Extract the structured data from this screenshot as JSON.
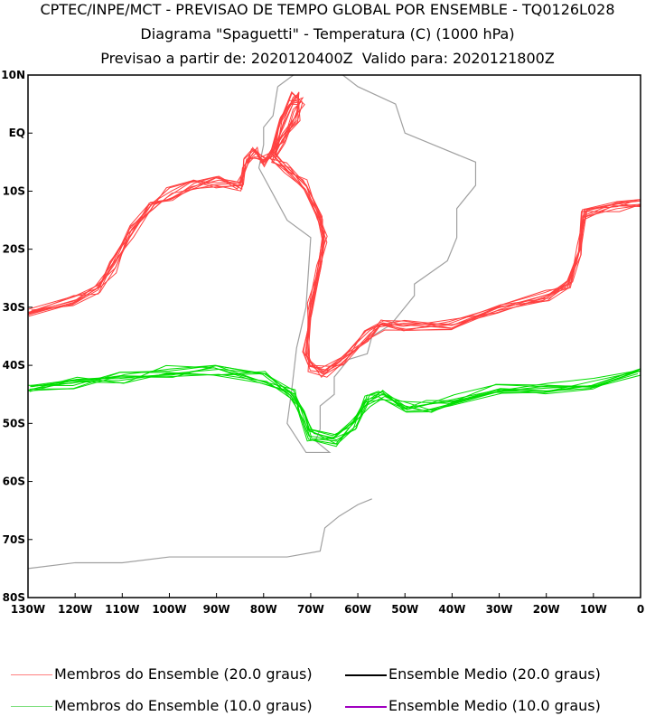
{
  "header": {
    "title": "CPTEC/INPE/MCT - PREVISAO DE TEMPO GLOBAL POR ENSEMBLE - TQ0126L028",
    "subtitle": "Diagrama \"Spaguetti\" - Temperatura (C) (1000 hPa)",
    "dates": "Previsao a partir de: 2020120400Z  Valido para: 2020121800Z"
  },
  "legend": [
    {
      "label": "Membros do Ensemble (20.0 graus)",
      "color": "#ff8080"
    },
    {
      "label": "Ensemble Medio (20.0 graus)",
      "color": "#000000"
    },
    {
      "label": "Membros do Ensemble (10.0 graus)",
      "color": "#80e080"
    },
    {
      "label": "Ensemble Medio (10.0 graus)",
      "color": "#a000c0"
    }
  ],
  "chart_data": {
    "type": "line",
    "xlim": [
      -130,
      0
    ],
    "ylim": [
      -80,
      10
    ],
    "x_ticks": [
      {
        "v": -130,
        "l": "130W"
      },
      {
        "v": -120,
        "l": "120W"
      },
      {
        "v": -110,
        "l": "110W"
      },
      {
        "v": -100,
        "l": "100W"
      },
      {
        "v": -90,
        "l": "90W"
      },
      {
        "v": -80,
        "l": "80W"
      },
      {
        "v": -70,
        "l": "70W"
      },
      {
        "v": -60,
        "l": "60W"
      },
      {
        "v": -50,
        "l": "50W"
      },
      {
        "v": -40,
        "l": "40W"
      },
      {
        "v": -30,
        "l": "30W"
      },
      {
        "v": -20,
        "l": "20W"
      },
      {
        "v": -10,
        "l": "10W"
      },
      {
        "v": 0,
        "l": "0"
      }
    ],
    "y_ticks": [
      {
        "v": 10,
        "l": "10N"
      },
      {
        "v": 0,
        "l": "EQ"
      },
      {
        "v": -10,
        "l": "10S"
      },
      {
        "v": -20,
        "l": "20S"
      },
      {
        "v": -30,
        "l": "30S"
      },
      {
        "v": -40,
        "l": "40S"
      },
      {
        "v": -50,
        "l": "50S"
      },
      {
        "v": -60,
        "l": "60S"
      },
      {
        "v": -70,
        "l": "70S"
      },
      {
        "v": -80,
        "l": "80S"
      }
    ],
    "members": 10,
    "series": [
      {
        "name": "20.0 graus",
        "color": "#ff4040",
        "points": [
          [
            -130,
            -31
          ],
          [
            -120,
            -29
          ],
          [
            -115,
            -27
          ],
          [
            -112,
            -23
          ],
          [
            -108,
            -17
          ],
          [
            -104,
            -13
          ],
          [
            -100,
            -10.5
          ],
          [
            -95,
            -9
          ],
          [
            -90,
            -8.5
          ],
          [
            -85,
            -9
          ],
          [
            -84,
            -5
          ],
          [
            -82,
            -3.5
          ],
          [
            -80,
            -5
          ],
          [
            -78,
            -3
          ],
          [
            -76,
            2
          ],
          [
            -74,
            6
          ],
          [
            -72,
            6
          ],
          [
            -73,
            3
          ],
          [
            -76,
            -1
          ],
          [
            -78,
            -4
          ],
          [
            -75,
            -6
          ],
          [
            -71,
            -9
          ],
          [
            -68,
            -14
          ],
          [
            -67,
            -18
          ],
          [
            -68,
            -23
          ],
          [
            -70,
            -30
          ],
          [
            -71,
            -37
          ],
          [
            -70,
            -40
          ],
          [
            -67,
            -41
          ],
          [
            -63,
            -39
          ],
          [
            -58,
            -35
          ],
          [
            -55,
            -33
          ],
          [
            -50,
            -33
          ],
          [
            -40,
            -33
          ],
          [
            -30,
            -30
          ],
          [
            -20,
            -28
          ],
          [
            -15,
            -26
          ],
          [
            -13,
            -20
          ],
          [
            -12,
            -14
          ],
          [
            -5,
            -12.5
          ],
          [
            0,
            -12
          ]
        ]
      },
      {
        "name": "10.0 graus",
        "color": "#00dd00",
        "points": [
          [
            -130,
            -44
          ],
          [
            -120,
            -43
          ],
          [
            -110,
            -42
          ],
          [
            -100,
            -41
          ],
          [
            -90,
            -41
          ],
          [
            -80,
            -42
          ],
          [
            -74,
            -45
          ],
          [
            -72,
            -48
          ],
          [
            -70,
            -52
          ],
          [
            -65,
            -53
          ],
          [
            -61,
            -50
          ],
          [
            -58,
            -46
          ],
          [
            -55,
            -45
          ],
          [
            -50,
            -47
          ],
          [
            -45,
            -47
          ],
          [
            -40,
            -46
          ],
          [
            -30,
            -44
          ],
          [
            -20,
            -44
          ],
          [
            -10,
            -43
          ],
          [
            0,
            -41
          ]
        ]
      }
    ],
    "coastlines": [
      [
        [
          -77,
          8
        ],
        [
          -72,
          11
        ],
        [
          -64,
          10.5
        ],
        [
          -60,
          8
        ],
        [
          -52,
          5
        ],
        [
          -50,
          0
        ],
        [
          -44,
          -2
        ],
        [
          -35,
          -5
        ],
        [
          -35,
          -9
        ],
        [
          -39,
          -13
        ],
        [
          -39,
          -18
        ],
        [
          -41,
          -22
        ],
        [
          -48,
          -26
        ],
        [
          -48,
          -28
        ],
        [
          -53,
          -33
        ],
        [
          -57,
          -35
        ],
        [
          -58,
          -38
        ],
        [
          -62,
          -39
        ],
        [
          -65,
          -42
        ],
        [
          -65,
          -45
        ],
        [
          -68,
          -47
        ],
        [
          -68,
          -51
        ],
        [
          -69,
          -53
        ],
        [
          -66,
          -55
        ],
        [
          -71,
          -55
        ],
        [
          -75,
          -50
        ],
        [
          -74,
          -44
        ],
        [
          -73,
          -37
        ],
        [
          -71,
          -30
        ],
        [
          -70,
          -18
        ],
        [
          -75,
          -15
        ],
        [
          -81,
          -6
        ],
        [
          -80,
          -2
        ],
        [
          -80,
          1
        ],
        [
          -78,
          3
        ],
        [
          -77,
          8
        ]
      ],
      [
        [
          -57,
          -63
        ],
        [
          -60,
          -64
        ],
        [
          -64,
          -66
        ],
        [
          -67,
          -68
        ],
        [
          -68,
          -72
        ],
        [
          -75,
          -73
        ],
        [
          -90,
          -73
        ],
        [
          -100,
          -73
        ],
        [
          -110,
          -74
        ],
        [
          -120,
          -74
        ],
        [
          -130,
          -75
        ]
      ]
    ]
  }
}
